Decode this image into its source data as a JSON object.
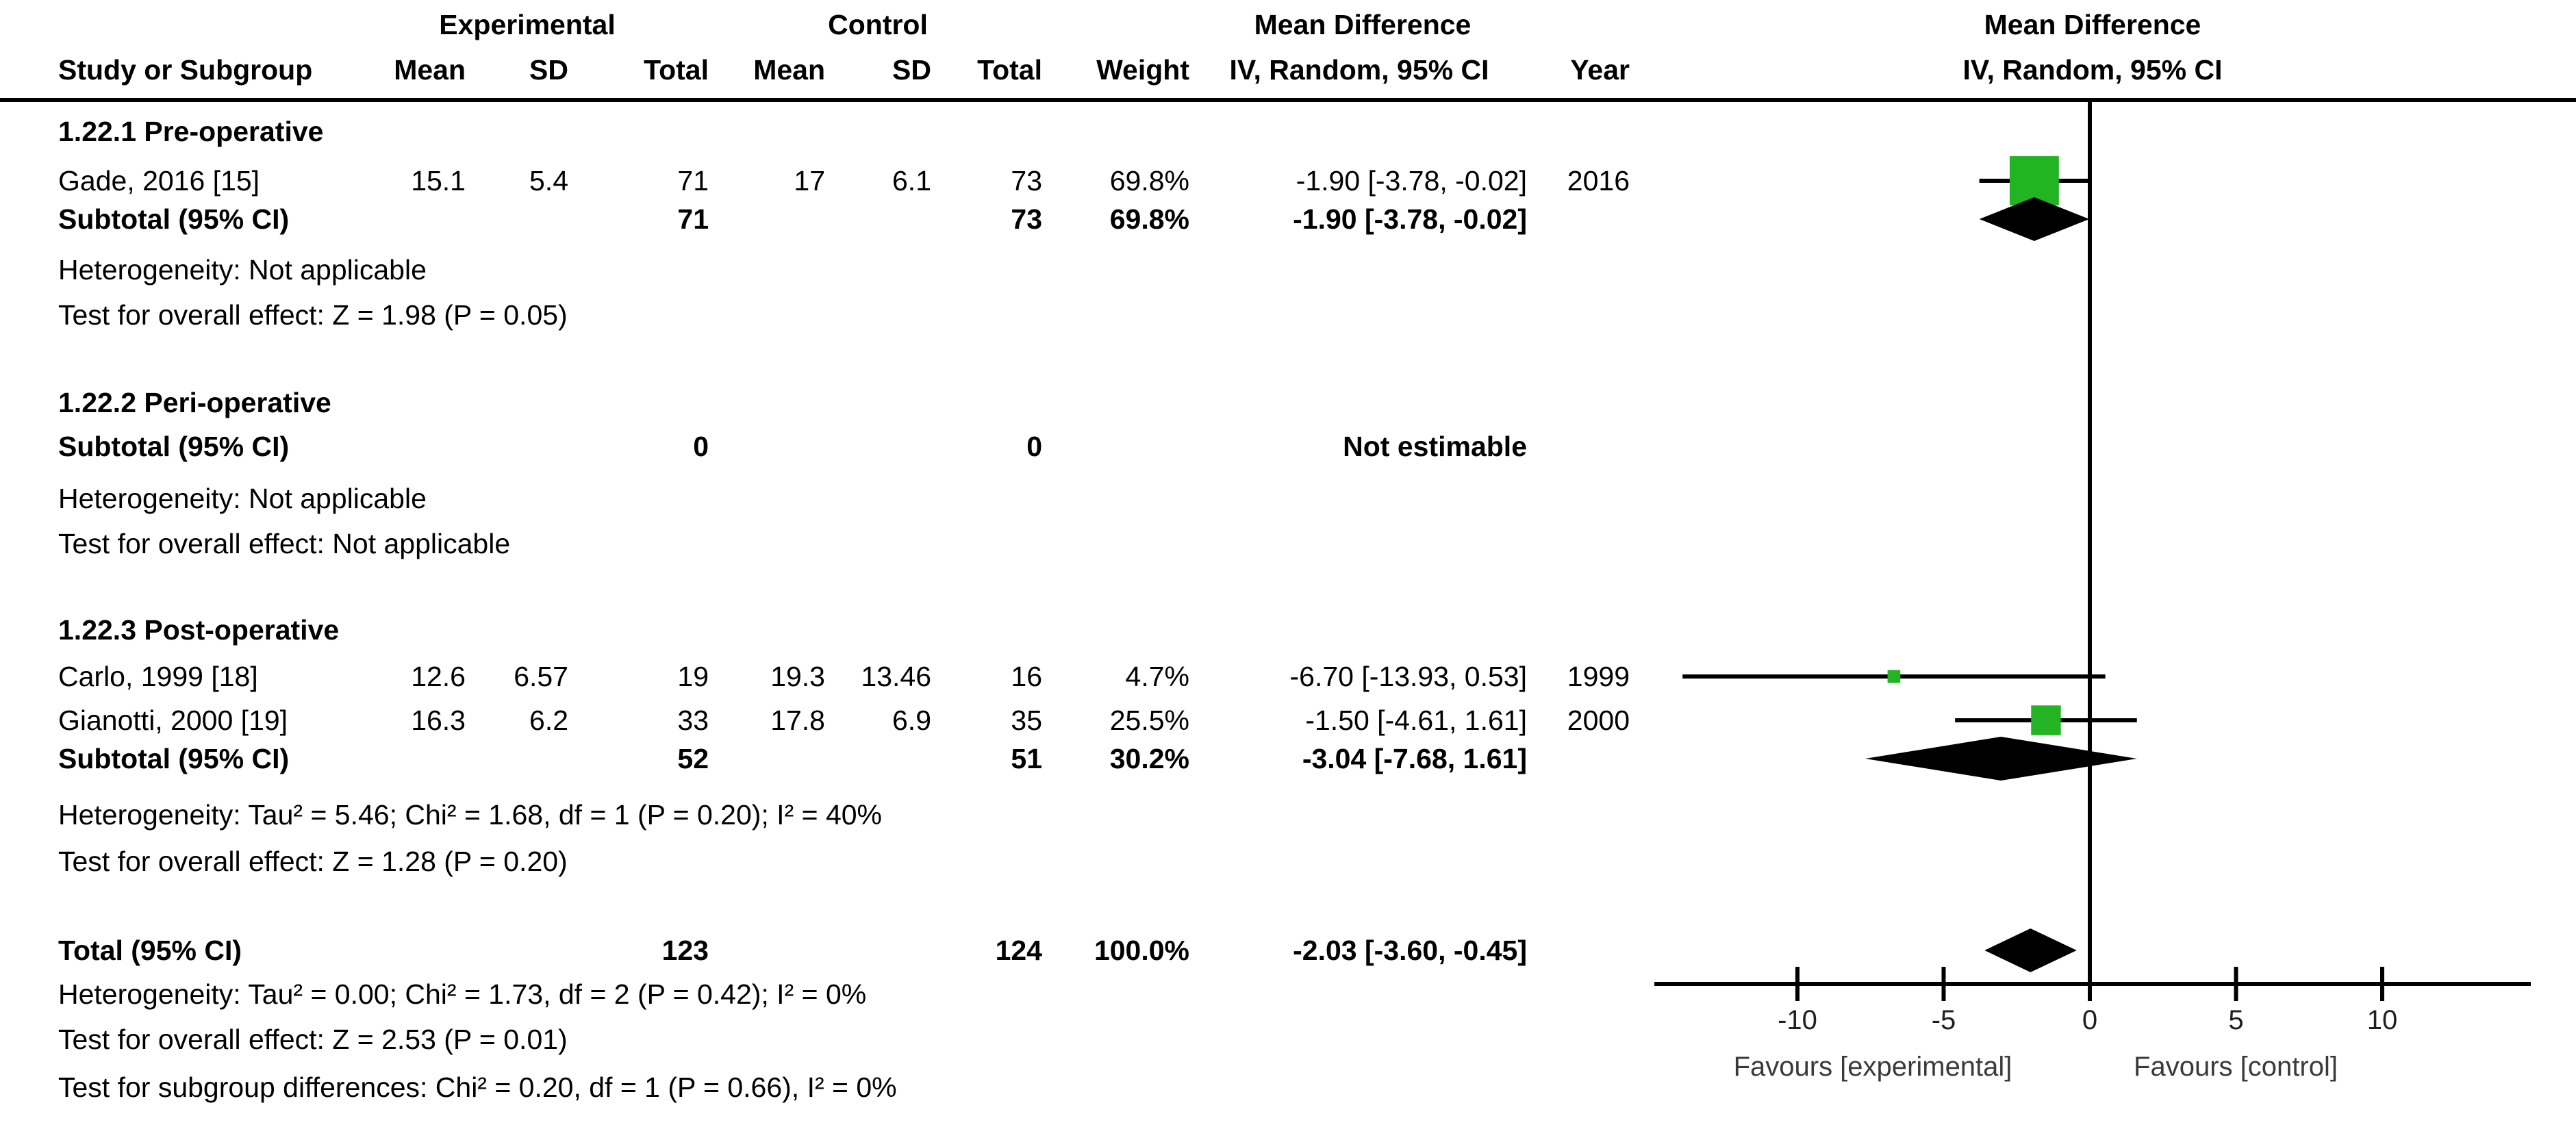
{
  "style": {
    "background": "#ffffff",
    "text_color": "#000000",
    "marker_color": "#22b422",
    "line_color": "#000000"
  },
  "header": {
    "group_experimental": "Experimental",
    "group_control": "Control",
    "effect_left": "Mean Difference",
    "effect_right": "Mean Difference",
    "study": "Study or Subgroup",
    "mean": "Mean",
    "sd": "SD",
    "total": "Total",
    "mean2": "Mean",
    "sd2": "SD",
    "total2": "Total",
    "weight": "Weight",
    "ci": "IV, Random, 95% CI",
    "year": "Year",
    "ci_right": "IV, Random, 95% CI"
  },
  "chart_data": {
    "type": "scatter",
    "subtype": "forest-plot",
    "effect_measure": "Mean Difference",
    "model": "IV, Random, 95% CI",
    "axis": {
      "xlim": [
        -14.9,
        15.1
      ],
      "ticks": [
        -10,
        -5,
        0,
        5,
        10
      ],
      "tick_labels": [
        "-10",
        "-5",
        "0",
        "5",
        "10"
      ],
      "zero_line": 0,
      "favours_left": "Favours [experimental]",
      "favours_right": "Favours [control]"
    },
    "rows": [
      {
        "kind": "subgroup",
        "label": "1.22.1 Pre-operative"
      },
      {
        "kind": "study",
        "label": "Gade, 2016 [15]",
        "exp_mean": "15.1",
        "exp_sd": "5.4",
        "exp_total": "71",
        "ctl_mean": "17",
        "ctl_sd": "6.1",
        "ctl_total": "73",
        "weight": "69.8%",
        "ci_text": "-1.90 [-3.78, -0.02]",
        "year": "2016",
        "estimate": -1.9,
        "ci_low": -3.78,
        "ci_high": -0.02,
        "weight_pct": 69.8
      },
      {
        "kind": "subtotal",
        "label": "Subtotal (95% CI)",
        "exp_total": "71",
        "ctl_total": "73",
        "weight": "69.8%",
        "ci_text": "-1.90 [-3.78, -0.02]",
        "estimate": -1.9,
        "ci_low": -3.78,
        "ci_high": -0.02
      },
      {
        "kind": "note",
        "label": "Heterogeneity: Not applicable"
      },
      {
        "kind": "note",
        "label": "Test for overall effect: Z = 1.98 (P = 0.05)"
      },
      {
        "kind": "subgroup",
        "label": "1.22.2 Peri-operative"
      },
      {
        "kind": "subtotal",
        "label": "Subtotal (95% CI)",
        "exp_total": "0",
        "ctl_total": "0",
        "weight": "",
        "ci_text": "Not estimable"
      },
      {
        "kind": "note",
        "label": "Heterogeneity: Not applicable"
      },
      {
        "kind": "note",
        "label": "Test for overall effect: Not applicable"
      },
      {
        "kind": "subgroup",
        "label": "1.22.3 Post-operative"
      },
      {
        "kind": "study",
        "label": "Carlo, 1999 [18]",
        "exp_mean": "12.6",
        "exp_sd": "6.57",
        "exp_total": "19",
        "ctl_mean": "19.3",
        "ctl_sd": "13.46",
        "ctl_total": "16",
        "weight": "4.7%",
        "ci_text": "-6.70 [-13.93, 0.53]",
        "year": "1999",
        "estimate": -6.7,
        "ci_low": -13.93,
        "ci_high": 0.53,
        "weight_pct": 4.7
      },
      {
        "kind": "study",
        "label": "Gianotti, 2000 [19]",
        "exp_mean": "16.3",
        "exp_sd": "6.2",
        "exp_total": "33",
        "ctl_mean": "17.8",
        "ctl_sd": "6.9",
        "ctl_total": "35",
        "weight": "25.5%",
        "ci_text": "-1.50 [-4.61, 1.61]",
        "year": "2000",
        "estimate": -1.5,
        "ci_low": -4.61,
        "ci_high": 1.61,
        "weight_pct": 25.5
      },
      {
        "kind": "subtotal",
        "label": "Subtotal (95% CI)",
        "exp_total": "52",
        "ctl_total": "51",
        "weight": "30.2%",
        "ci_text": "-3.04 [-7.68, 1.61]",
        "estimate": -3.04,
        "ci_low": -7.68,
        "ci_high": 1.61
      },
      {
        "kind": "note",
        "label": "Heterogeneity: Tau² = 5.46; Chi² = 1.68, df = 1 (P = 0.20); I² = 40%"
      },
      {
        "kind": "note",
        "label": "Test for overall effect: Z = 1.28 (P = 0.20)"
      },
      {
        "kind": "total",
        "label": "Total (95% CI)",
        "exp_total": "123",
        "ctl_total": "124",
        "weight": "100.0%",
        "ci_text": "-2.03 [-3.60, -0.45]",
        "estimate": -2.03,
        "ci_low": -3.6,
        "ci_high": -0.45
      },
      {
        "kind": "note",
        "label": "Heterogeneity: Tau² = 0.00; Chi² = 1.73, df = 2 (P = 0.42); I² = 0%"
      },
      {
        "kind": "note",
        "label": "Test for overall effect: Z = 2.53 (P = 0.01)"
      },
      {
        "kind": "note",
        "label": "Test for subgroup differences: Chi² = 0.20, df = 1 (P = 0.66), I² = 0%"
      }
    ]
  }
}
